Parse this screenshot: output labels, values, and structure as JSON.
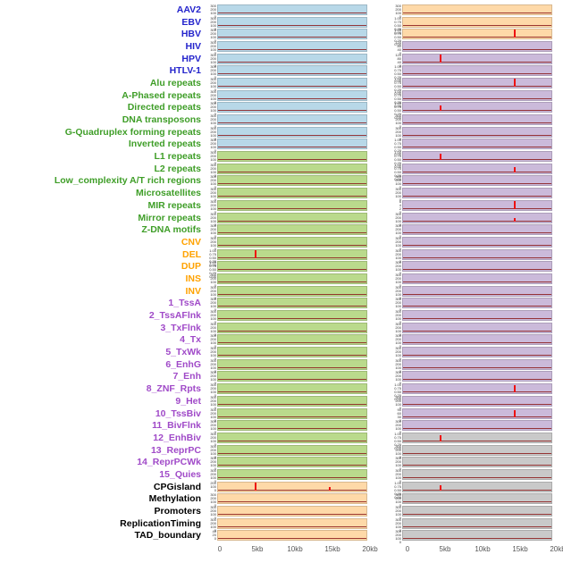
{
  "chart_data": {
    "type": "line",
    "title": "",
    "layout": "small-multiples: 44 labeled genomic feature tracks in two columns, signal vs position 0-20kb, flat baseline with red spikes",
    "x_ticks": [
      "0",
      "5kb",
      "10kb",
      "15kb",
      "20kb"
    ],
    "x_range_kb": [
      0,
      20
    ],
    "rows": [
      {
        "label": "AAV2",
        "group": "virus",
        "left": {
          "panel": "blue",
          "ticks": "count4",
          "spikes": []
        },
        "right": {
          "panel": "peach",
          "ticks": "count4",
          "spikes": []
        }
      },
      {
        "label": "EBV",
        "group": "virus",
        "left": {
          "panel": "blue",
          "ticks": "count4",
          "spikes": []
        },
        "right": {
          "panel": "peach",
          "ticks": "frac5",
          "spikes": []
        }
      },
      {
        "label": "HBV",
        "group": "virus",
        "left": {
          "panel": "blue",
          "ticks": "count4",
          "spikes": []
        },
        "right": {
          "panel": "peach",
          "ticks": "frac5",
          "spikes": [
            {
              "x_kb": 15,
              "height_frac": 0.95
            }
          ]
        }
      },
      {
        "label": "HIV",
        "group": "virus",
        "left": {
          "panel": "blue",
          "ticks": "count4",
          "spikes": []
        },
        "right": {
          "panel": "purple",
          "ticks": "count120",
          "spikes": []
        }
      },
      {
        "label": "HPV",
        "group": "virus",
        "left": {
          "panel": "blue",
          "ticks": "count4",
          "spikes": []
        },
        "right": {
          "panel": "purple",
          "ticks": "count120",
          "spikes": [
            {
              "x_kb": 5,
              "height_frac": 0.85
            }
          ]
        }
      },
      {
        "label": "HTLV-1",
        "group": "virus",
        "left": {
          "panel": "blue",
          "ticks": "count4",
          "spikes": []
        },
        "right": {
          "panel": "purple",
          "ticks": "frac5",
          "spikes": []
        }
      },
      {
        "label": "Alu repeats",
        "group": "repeat",
        "left": {
          "panel": "blue",
          "ticks": "count4",
          "spikes": []
        },
        "right": {
          "panel": "purple",
          "ticks": "frac5",
          "spikes": [
            {
              "x_kb": 15,
              "height_frac": 0.85
            }
          ]
        }
      },
      {
        "label": "A-Phased repeats",
        "group": "repeat",
        "left": {
          "panel": "blue",
          "ticks": "count4",
          "spikes": []
        },
        "right": {
          "panel": "purple",
          "ticks": "frac5",
          "spikes": []
        }
      },
      {
        "label": "Directed repeats",
        "group": "repeat",
        "left": {
          "panel": "blue",
          "ticks": "count4",
          "spikes": []
        },
        "right": {
          "panel": "purple",
          "ticks": "frac5",
          "spikes": [
            {
              "x_kb": 5,
              "height_frac": 0.6
            }
          ]
        }
      },
      {
        "label": "DNA transposons",
        "group": "repeat",
        "left": {
          "panel": "blue",
          "ticks": "count4",
          "spikes": []
        },
        "right": {
          "panel": "purple",
          "ticks": "count4",
          "spikes": []
        }
      },
      {
        "label": "G-Quadruplex forming repeats",
        "group": "repeat",
        "left": {
          "panel": "blue",
          "ticks": "count4",
          "spikes": []
        },
        "right": {
          "panel": "purple",
          "ticks": "count4",
          "spikes": []
        }
      },
      {
        "label": "Inverted repeats",
        "group": "repeat",
        "left": {
          "panel": "blue",
          "ticks": "count4",
          "spikes": []
        },
        "right": {
          "panel": "purple",
          "ticks": "frac5",
          "spikes": []
        }
      },
      {
        "label": "L1 repeats",
        "group": "repeat",
        "left": {
          "panel": "green",
          "ticks": "count4",
          "spikes": []
        },
        "right": {
          "panel": "purple",
          "ticks": "frac5",
          "spikes": [
            {
              "x_kb": 5,
              "height_frac": 0.7
            }
          ]
        }
      },
      {
        "label": "L2 repeats",
        "group": "repeat",
        "left": {
          "panel": "green",
          "ticks": "count4",
          "spikes": []
        },
        "right": {
          "panel": "purple",
          "ticks": "frac5",
          "spikes": [
            {
              "x_kb": 15,
              "height_frac": 0.55
            }
          ]
        }
      },
      {
        "label": "Low_complexity A/T rich regions",
        "group": "repeat",
        "left": {
          "panel": "green",
          "ticks": "count4",
          "spikes": []
        },
        "right": {
          "panel": "purple",
          "ticks": "count4",
          "spikes": []
        }
      },
      {
        "label": "Microsatellites",
        "group": "repeat",
        "left": {
          "panel": "green",
          "ticks": "count4",
          "spikes": []
        },
        "right": {
          "panel": "purple",
          "ticks": "count4",
          "spikes": []
        }
      },
      {
        "label": "MIR repeats",
        "group": "repeat",
        "left": {
          "panel": "green",
          "ticks": "count4",
          "spikes": []
        },
        "right": {
          "panel": "purple",
          "ticks": "count6",
          "spikes": [
            {
              "x_kb": 15,
              "height_frac": 0.9
            }
          ]
        }
      },
      {
        "label": "Mirror repeats",
        "group": "repeat",
        "left": {
          "panel": "green",
          "ticks": "count4",
          "spikes": []
        },
        "right": {
          "panel": "purple",
          "ticks": "count4",
          "spikes": [
            {
              "x_kb": 15,
              "height_frac": 0.35
            }
          ]
        }
      },
      {
        "label": "Z-DNA motifs",
        "group": "repeat",
        "left": {
          "panel": "green",
          "ticks": "count4",
          "spikes": []
        },
        "right": {
          "panel": "purple",
          "ticks": "count4",
          "spikes": []
        }
      },
      {
        "label": "CNV",
        "group": "sv",
        "left": {
          "panel": "green",
          "ticks": "count4",
          "spikes": []
        },
        "right": {
          "panel": "purple",
          "ticks": "count4",
          "spikes": []
        }
      },
      {
        "label": "DEL",
        "group": "sv",
        "left": {
          "panel": "green",
          "ticks": "frac5",
          "spikes": [
            {
              "x_kb": 5,
              "height_frac": 0.9
            }
          ]
        },
        "right": {
          "panel": "purple",
          "ticks": "count4",
          "spikes": []
        }
      },
      {
        "label": "DUP",
        "group": "sv",
        "left": {
          "panel": "green",
          "ticks": "frac5",
          "spikes": []
        },
        "right": {
          "panel": "purple",
          "ticks": "count4",
          "spikes": []
        }
      },
      {
        "label": "INS",
        "group": "sv",
        "left": {
          "panel": "green",
          "ticks": "count4",
          "spikes": []
        },
        "right": {
          "panel": "purple",
          "ticks": "count4",
          "spikes": []
        }
      },
      {
        "label": "INV",
        "group": "sv",
        "left": {
          "panel": "green",
          "ticks": "count4",
          "spikes": []
        },
        "right": {
          "panel": "purple",
          "ticks": "count4",
          "spikes": []
        }
      },
      {
        "label": "1_TssA",
        "group": "chromhmm",
        "left": {
          "panel": "green",
          "ticks": "count4",
          "spikes": []
        },
        "right": {
          "panel": "purple",
          "ticks": "count4",
          "spikes": []
        }
      },
      {
        "label": "2_TssAFlnk",
        "group": "chromhmm",
        "left": {
          "panel": "green",
          "ticks": "count4",
          "spikes": []
        },
        "right": {
          "panel": "purple",
          "ticks": "count4",
          "spikes": []
        }
      },
      {
        "label": "3_TxFlnk",
        "group": "chromhmm",
        "left": {
          "panel": "green",
          "ticks": "count4",
          "spikes": []
        },
        "right": {
          "panel": "purple",
          "ticks": "count4",
          "spikes": []
        }
      },
      {
        "label": "4_Tx",
        "group": "chromhmm",
        "left": {
          "panel": "green",
          "ticks": "count4",
          "spikes": []
        },
        "right": {
          "panel": "purple",
          "ticks": "count4",
          "spikes": []
        }
      },
      {
        "label": "5_TxWk",
        "group": "chromhmm",
        "left": {
          "panel": "green",
          "ticks": "count4",
          "spikes": []
        },
        "right": {
          "panel": "purple",
          "ticks": "count4",
          "spikes": []
        }
      },
      {
        "label": "6_EnhG",
        "group": "chromhmm",
        "left": {
          "panel": "green",
          "ticks": "count4",
          "spikes": []
        },
        "right": {
          "panel": "purple",
          "ticks": "count4",
          "spikes": []
        }
      },
      {
        "label": "7_Enh",
        "group": "chromhmm",
        "left": {
          "panel": "green",
          "ticks": "count4",
          "spikes": []
        },
        "right": {
          "panel": "purple",
          "ticks": "count4",
          "spikes": []
        }
      },
      {
        "label": "8_ZNF_Rpts",
        "group": "chromhmm",
        "left": {
          "panel": "green",
          "ticks": "count4",
          "spikes": []
        },
        "right": {
          "panel": "purple",
          "ticks": "frac5",
          "spikes": [
            {
              "x_kb": 15,
              "height_frac": 0.8
            }
          ]
        }
      },
      {
        "label": "9_Het",
        "group": "chromhmm",
        "left": {
          "panel": "green",
          "ticks": "count4",
          "spikes": []
        },
        "right": {
          "panel": "purple",
          "ticks": "count4",
          "spikes": []
        }
      },
      {
        "label": "10_TssBiv",
        "group": "chromhmm",
        "left": {
          "panel": "green",
          "ticks": "count4",
          "spikes": []
        },
        "right": {
          "panel": "purple",
          "ticks": "count90",
          "spikes": [
            {
              "x_kb": 15,
              "height_frac": 0.75
            }
          ]
        }
      },
      {
        "label": "11_BivFlnk",
        "group": "chromhmm",
        "left": {
          "panel": "green",
          "ticks": "count4",
          "spikes": []
        },
        "right": {
          "panel": "purple",
          "ticks": "count4",
          "spikes": []
        }
      },
      {
        "label": "12_EnhBiv",
        "group": "chromhmm",
        "left": {
          "panel": "green",
          "ticks": "count4",
          "spikes": []
        },
        "right": {
          "panel": "gray",
          "ticks": "frac5",
          "spikes": [
            {
              "x_kb": 5,
              "height_frac": 0.7
            }
          ]
        }
      },
      {
        "label": "13_ReprPC",
        "group": "chromhmm",
        "left": {
          "panel": "green",
          "ticks": "count4",
          "spikes": []
        },
        "right": {
          "panel": "gray",
          "ticks": "count4",
          "spikes": []
        }
      },
      {
        "label": "14_ReprPCWk",
        "group": "chromhmm",
        "left": {
          "panel": "green",
          "ticks": "count4",
          "spikes": []
        },
        "right": {
          "panel": "gray",
          "ticks": "count4",
          "spikes": []
        }
      },
      {
        "label": "15_Quies",
        "group": "chromhmm",
        "left": {
          "panel": "green",
          "ticks": "count4",
          "spikes": []
        },
        "right": {
          "panel": "gray",
          "ticks": "count4",
          "spikes": []
        }
      },
      {
        "label": "CPGisland",
        "group": "other",
        "left": {
          "panel": "peach",
          "ticks": "count200",
          "spikes": [
            {
              "x_kb": 5,
              "height_frac": 0.9
            },
            {
              "x_kb": 15,
              "height_frac": 0.35
            }
          ]
        },
        "right": {
          "panel": "gray",
          "ticks": "frac5",
          "spikes": [
            {
              "x_kb": 5,
              "height_frac": 0.6
            }
          ]
        }
      },
      {
        "label": "Methylation",
        "group": "other",
        "left": {
          "panel": "peach",
          "ticks": "count4",
          "spikes": []
        },
        "right": {
          "panel": "gray",
          "ticks": "count4",
          "spikes": []
        }
      },
      {
        "label": "Promoters",
        "group": "other",
        "left": {
          "panel": "peach",
          "ticks": "count4",
          "spikes": []
        },
        "right": {
          "panel": "gray",
          "ticks": "count4",
          "spikes": []
        }
      },
      {
        "label": "ReplicationTiming",
        "group": "other",
        "left": {
          "panel": "peach",
          "ticks": "count4",
          "spikes": []
        },
        "right": {
          "panel": "gray",
          "ticks": "count4",
          "spikes": []
        }
      },
      {
        "label": "TAD_boundary",
        "group": "other",
        "left": {
          "panel": "peach",
          "ticks": "count40",
          "spikes": []
        },
        "right": {
          "panel": "gray",
          "ticks": "count4",
          "spikes": []
        }
      }
    ]
  },
  "tick_sets": {
    "count4": [
      "300",
      "200",
      "100",
      "0"
    ],
    "count200": [
      "200",
      "100",
      "0"
    ],
    "count120": [
      "120",
      "80",
      "40",
      "0"
    ],
    "count90": [
      "90",
      "60",
      "30",
      "0"
    ],
    "count6": [
      "6",
      "4",
      "2",
      "0"
    ],
    "count40": [
      "40",
      "20",
      "0"
    ],
    "frac5": [
      "1.00",
      "0.75",
      "0.50",
      "0.25",
      "0.00"
    ]
  },
  "colors": {
    "label_virus": "#2424cc",
    "label_repeat": "#3f9e28",
    "label_sv": "#ffa200",
    "label_chromhmm": "#a04ac8",
    "label_other": "#000000",
    "panel_blue": "#b8d8e8",
    "panel_green": "#bada8c",
    "panel_peach": "#fed9a8",
    "panel_purple": "#cbbada",
    "panel_gray": "#c9c9c9",
    "baseline": "#8b1a1a",
    "spike": "#ee1111"
  }
}
